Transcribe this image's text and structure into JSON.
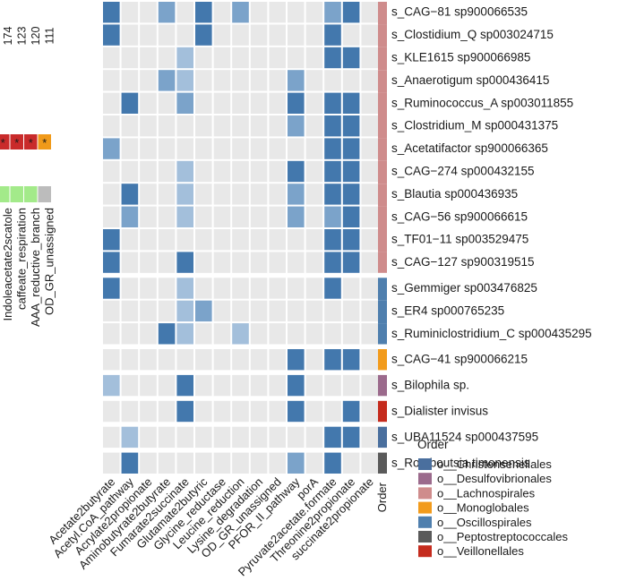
{
  "chart_data": {
    "type": "heatmap",
    "colors": {
      "empty": "#e8e8e8",
      "strong": "#4378ad",
      "medium": "#7ba3ca",
      "light": "#a3bfdb",
      "left_red": "#c92b2b",
      "left_orange": "#f09a1a",
      "left_green": "#a3ea8a",
      "left_grey": "#bcbcbc"
    },
    "orders": [
      {
        "name": "o__Christensenellales",
        "color": "#4a6f9e"
      },
      {
        "name": "o__Desulfovibrionales",
        "color": "#9b6a8c"
      },
      {
        "name": "o__Lachnospirales",
        "color": "#cf8c8c"
      },
      {
        "name": "o__Monoglobales",
        "color": "#f29b1c"
      },
      {
        "name": "o__Oscillospirales",
        "color": "#4f7fae"
      },
      {
        "name": "o__Peptostreptococcales",
        "color": "#5a5a5a"
      },
      {
        "name": "o__Veillonellales",
        "color": "#c52b1d"
      }
    ],
    "legend_title": "Order",
    "order_column_label": "Order",
    "columns": [
      "Acetate2butyrate",
      "Acetyl.CoA_pathway",
      "Acrylate2propionate",
      "Aminobutyrate2butyrate",
      "Fumarate2succinate",
      "Glutamate2butyric",
      "Glycine_reductase",
      "Leucine_reduction",
      "Lysine_degradation",
      "OD_GR_unassigned",
      "PFOR_II_pathway",
      "porA",
      "Pyruvate2acetate.formate",
      "Threonine2propionate",
      "succinate2propionate"
    ],
    "groups": [
      {
        "rows": [
          {
            "label": "s_CAG−81 sp900066535",
            "order": 2,
            "cells": [
              3,
              0,
              0,
              2,
              0,
              3,
              0,
              2,
              0,
              0,
              0,
              0,
              2,
              3,
              0
            ]
          },
          {
            "label": "s_Clostidium_Q sp003024715",
            "order": 2,
            "cells": [
              3,
              0,
              0,
              0,
              0,
              3,
              0,
              0,
              0,
              0,
              0,
              0,
              3,
              0,
              0
            ]
          },
          {
            "label": "s_KLE1615 sp900066985",
            "order": 2,
            "cells": [
              0,
              0,
              0,
              0,
              1,
              0,
              0,
              0,
              0,
              0,
              0,
              0,
              3,
              3,
              0
            ]
          },
          {
            "label": "s_Anaerotigum sp000436415",
            "order": 2,
            "cells": [
              0,
              0,
              0,
              2,
              1,
              0,
              0,
              0,
              0,
              0,
              2,
              0,
              0,
              0,
              0
            ]
          },
          {
            "label": "s_Ruminococcus_A sp003011855",
            "order": 2,
            "cells": [
              0,
              3,
              0,
              0,
              2,
              0,
              0,
              0,
              0,
              0,
              3,
              0,
              3,
              3,
              0
            ]
          },
          {
            "label": "s_Clostridium_M sp000431375",
            "order": 2,
            "cells": [
              0,
              0,
              0,
              0,
              0,
              0,
              0,
              0,
              0,
              0,
              2,
              0,
              3,
              3,
              0
            ]
          },
          {
            "label": "s_Acetatifactor sp900066365",
            "order": 2,
            "cells": [
              2,
              0,
              0,
              0,
              0,
              0,
              0,
              0,
              0,
              0,
              0,
              0,
              3,
              3,
              0
            ]
          },
          {
            "label": "s_CAG−274 sp000432155",
            "order": 2,
            "cells": [
              0,
              0,
              0,
              0,
              1,
              0,
              0,
              0,
              0,
              0,
              3,
              0,
              3,
              3,
              0
            ]
          },
          {
            "label": "s_Blautia sp000436935",
            "order": 2,
            "cells": [
              0,
              3,
              0,
              0,
              1,
              0,
              0,
              0,
              0,
              0,
              2,
              0,
              3,
              3,
              0
            ]
          },
          {
            "label": "s_CAG−56 sp900066615",
            "order": 2,
            "cells": [
              0,
              2,
              0,
              0,
              1,
              0,
              0,
              0,
              0,
              0,
              2,
              0,
              2,
              3,
              0
            ]
          },
          {
            "label": "s_TF01−11 sp003529475",
            "order": 2,
            "cells": [
              3,
              0,
              0,
              0,
              0,
              0,
              0,
              0,
              0,
              0,
              0,
              0,
              3,
              3,
              0
            ]
          },
          {
            "label": "s_CAG−127 sp900319515",
            "order": 2,
            "cells": [
              3,
              0,
              0,
              0,
              3,
              0,
              0,
              0,
              0,
              0,
              0,
              0,
              3,
              3,
              0
            ]
          }
        ]
      },
      {
        "rows": [
          {
            "label": "s_Gemmiger sp003476825",
            "order": 4,
            "cells": [
              3,
              0,
              0,
              0,
              1,
              0,
              0,
              0,
              0,
              0,
              0,
              0,
              3,
              0,
              0
            ]
          },
          {
            "label": "s_ER4 sp000765235",
            "order": 4,
            "cells": [
              0,
              0,
              0,
              0,
              1,
              2,
              0,
              0,
              0,
              0,
              0,
              0,
              0,
              0,
              0
            ]
          },
          {
            "label": "s_Ruminiclostridium_C sp000435295",
            "order": 4,
            "cells": [
              0,
              0,
              0,
              3,
              1,
              0,
              0,
              1,
              0,
              0,
              0,
              0,
              0,
              0,
              0
            ]
          }
        ]
      },
      {
        "rows": [
          {
            "label": "s_CAG−41 sp900066215",
            "order": 3,
            "cells": [
              0,
              0,
              0,
              0,
              0,
              0,
              0,
              0,
              0,
              0,
              3,
              0,
              3,
              3,
              0
            ]
          }
        ]
      },
      {
        "rows": [
          {
            "label": "s_Bilophila sp.",
            "order": 1,
            "cells": [
              1,
              0,
              0,
              0,
              3,
              0,
              0,
              0,
              0,
              0,
              3,
              0,
              0,
              0,
              0
            ]
          }
        ]
      },
      {
        "rows": [
          {
            "label": "s_Dialister  invisus",
            "order": 6,
            "cells": [
              0,
              0,
              0,
              0,
              3,
              0,
              0,
              0,
              0,
              0,
              3,
              0,
              0,
              3,
              0
            ]
          }
        ]
      },
      {
        "rows": [
          {
            "label": "s_UBA11524 sp000437595",
            "order": 0,
            "cells": [
              0,
              1,
              0,
              0,
              0,
              0,
              0,
              0,
              0,
              0,
              0,
              0,
              3,
              3,
              0
            ]
          }
        ]
      },
      {
        "rows": [
          {
            "label": "s_Romboutsia timonensis",
            "order": 5,
            "cells": [
              0,
              3,
              0,
              0,
              0,
              0,
              0,
              0,
              0,
              0,
              2,
              0,
              3,
              0,
              0
            ]
          }
        ]
      }
    ],
    "left_panel": {
      "columns": [
        "Indoleacetate2scatole",
        "caffeate_respiration",
        "AAA_reductive_branch",
        "OD_GR_unassigned"
      ],
      "counts": [
        "174",
        "123",
        "120",
        "111"
      ],
      "red_row_marks": [
        "*",
        "*",
        "*",
        "*"
      ],
      "red_row_colors": [
        "left_red",
        "left_red",
        "left_red",
        "left_orange"
      ],
      "green_row_colors": [
        "left_green",
        "left_green",
        "left_green",
        "left_grey"
      ]
    }
  }
}
